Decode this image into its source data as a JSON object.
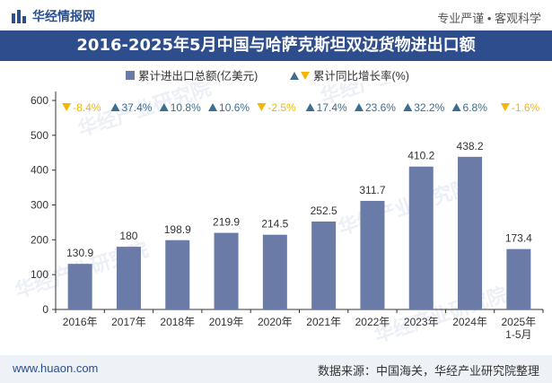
{
  "header": {
    "brand": "华经情报网",
    "tagline": "专业严谨 • 客观科学"
  },
  "title": "2016-2025年5月中国与哈萨克斯坦双边货物进出口额",
  "legend": {
    "bar_label": "累计进出口总额(亿美元)",
    "growth_label": "累计同比增长率(%)"
  },
  "colors": {
    "bar": "#6b7ba8",
    "up": "#3b6e8f",
    "down": "#f2b705",
    "title_bg": "#2e4d8c"
  },
  "footer": {
    "website": "www.huaon.com",
    "source": "数据来源：中国海关，华经产业研究院整理"
  },
  "chart_data": {
    "type": "bar",
    "categories": [
      "2016年",
      "2017年",
      "2018年",
      "2019年",
      "2020年",
      "2021年",
      "2022年",
      "2023年",
      "2024年",
      "2025年\n1-5月"
    ],
    "series": [
      {
        "name": "累计进出口总额(亿美元)",
        "values": [
          130.9,
          180,
          198.9,
          219.9,
          214.5,
          252.5,
          311.7,
          410.2,
          438.2,
          173.4
        ]
      },
      {
        "name": "累计同比增长率(%)",
        "values": [
          -8.4,
          37.4,
          10.8,
          10.6,
          -2.5,
          17.4,
          23.6,
          32.2,
          6.8,
          -1.6
        ]
      }
    ],
    "value_labels": [
      "130.9",
      "180",
      "198.9",
      "219.9",
      "214.5",
      "252.5",
      "311.7",
      "410.2",
      "438.2",
      "173.4"
    ],
    "growth_labels": [
      "-8.4%",
      "37.4%",
      "10.8%",
      "10.6%",
      "-2.5%",
      "17.4%",
      "23.6%",
      "32.2%",
      "6.8%",
      "-1.6%"
    ],
    "yticks": [
      0,
      100,
      200,
      300,
      400,
      500,
      600
    ],
    "ylim": [
      0,
      600
    ],
    "grid": false,
    "legend_position": "top-center"
  }
}
